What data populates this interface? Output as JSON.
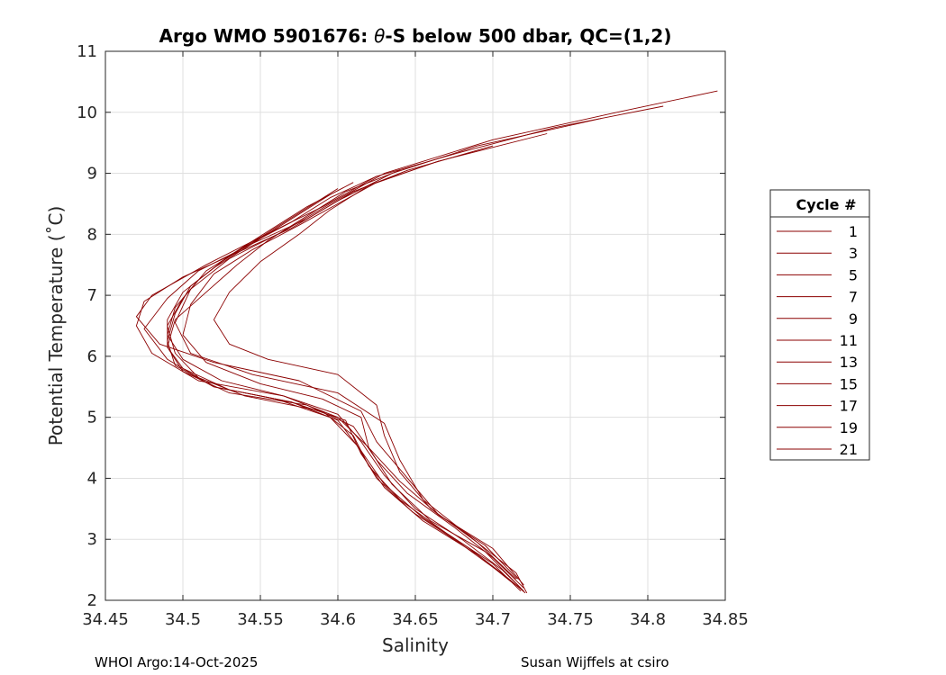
{
  "chart_data": {
    "type": "line",
    "title_prefix": "Argo WMO 5901676: ",
    "title_theta": "θ",
    "title_suffix": "-S below 500 dbar,  QC=(1,2)",
    "xlabel": "Salinity",
    "ylabel": "Potential Temperature (˚C)",
    "xlim": [
      34.45,
      34.85
    ],
    "ylim": [
      2,
      11
    ],
    "xticks": [
      "34.45",
      "34.5",
      "34.55",
      "34.6",
      "34.65",
      "34.7",
      "34.75",
      "34.8",
      "34.85"
    ],
    "yticks": [
      "2",
      "3",
      "4",
      "5",
      "6",
      "7",
      "8",
      "9",
      "10",
      "11"
    ],
    "grid": true,
    "legend_title": "Cycle #",
    "legend_position": "outside-right",
    "line_color": "#8b0000",
    "series": [
      {
        "name": "1",
        "points": [
          [
            34.845,
            10.35
          ],
          [
            34.78,
            10.0
          ],
          [
            34.7,
            9.55
          ],
          [
            34.63,
            9.0
          ],
          [
            34.595,
            8.5
          ],
          [
            34.565,
            8.05
          ],
          [
            34.53,
            7.6
          ],
          [
            34.505,
            7.1
          ],
          [
            34.495,
            6.55
          ],
          [
            34.505,
            6.05
          ],
          [
            34.545,
            5.7
          ],
          [
            34.6,
            5.4
          ],
          [
            34.63,
            4.9
          ],
          [
            34.64,
            4.3
          ],
          [
            34.655,
            3.65
          ],
          [
            34.685,
            3.05
          ],
          [
            34.715,
            2.45
          ],
          [
            34.722,
            2.12
          ]
        ]
      },
      {
        "name": "3",
        "points": [
          [
            34.81,
            10.1
          ],
          [
            34.74,
            9.75
          ],
          [
            34.68,
            9.35
          ],
          [
            34.625,
            8.95
          ],
          [
            34.59,
            8.45
          ],
          [
            34.55,
            7.95
          ],
          [
            34.515,
            7.5
          ],
          [
            34.48,
            7.0
          ],
          [
            34.47,
            6.65
          ],
          [
            34.485,
            6.2
          ],
          [
            34.52,
            5.9
          ],
          [
            34.575,
            5.6
          ],
          [
            34.615,
            5.1
          ],
          [
            34.625,
            4.6
          ],
          [
            34.645,
            4.0
          ],
          [
            34.665,
            3.4
          ],
          [
            34.7,
            2.85
          ],
          [
            34.72,
            2.25
          ]
        ]
      },
      {
        "name": "5",
        "points": [
          [
            34.77,
            9.9
          ],
          [
            34.69,
            9.45
          ],
          [
            34.635,
            9.0
          ],
          [
            34.6,
            8.55
          ],
          [
            34.57,
            8.1
          ],
          [
            34.535,
            7.7
          ],
          [
            34.5,
            7.3
          ],
          [
            34.475,
            6.9
          ],
          [
            34.47,
            6.5
          ],
          [
            34.48,
            6.05
          ],
          [
            34.51,
            5.6
          ],
          [
            34.565,
            5.35
          ],
          [
            34.6,
            5.0
          ],
          [
            34.62,
            4.5
          ],
          [
            34.635,
            3.9
          ],
          [
            34.66,
            3.3
          ],
          [
            34.695,
            2.8
          ],
          [
            34.718,
            2.2
          ]
        ]
      },
      {
        "name": "7",
        "points": [
          [
            34.735,
            9.65
          ],
          [
            34.665,
            9.2
          ],
          [
            34.62,
            8.8
          ],
          [
            34.595,
            8.4
          ],
          [
            34.575,
            8.0
          ],
          [
            34.55,
            7.55
          ],
          [
            34.53,
            7.05
          ],
          [
            34.52,
            6.6
          ],
          [
            34.53,
            6.2
          ],
          [
            34.555,
            5.95
          ],
          [
            34.6,
            5.7
          ],
          [
            34.625,
            5.2
          ],
          [
            34.63,
            4.7
          ],
          [
            34.64,
            4.1
          ],
          [
            34.66,
            3.5
          ],
          [
            34.69,
            2.95
          ],
          [
            34.715,
            2.35
          ]
        ]
      },
      {
        "name": "9",
        "points": [
          [
            34.7,
            9.45
          ],
          [
            34.645,
            9.05
          ],
          [
            34.61,
            8.7
          ],
          [
            34.58,
            8.25
          ],
          [
            34.545,
            7.85
          ],
          [
            34.51,
            7.4
          ],
          [
            34.49,
            6.95
          ],
          [
            34.475,
            6.45
          ],
          [
            34.49,
            5.95
          ],
          [
            34.52,
            5.5
          ],
          [
            34.57,
            5.25
          ],
          [
            34.605,
            4.95
          ],
          [
            34.615,
            4.4
          ],
          [
            34.63,
            3.85
          ],
          [
            34.655,
            3.3
          ],
          [
            34.69,
            2.75
          ],
          [
            34.712,
            2.3
          ]
        ]
      },
      {
        "name": "11",
        "points": [
          [
            34.665,
            9.2
          ],
          [
            34.625,
            8.85
          ],
          [
            34.6,
            8.5
          ],
          [
            34.575,
            8.15
          ],
          [
            34.545,
            7.75
          ],
          [
            34.52,
            7.35
          ],
          [
            34.505,
            6.85
          ],
          [
            34.5,
            6.35
          ],
          [
            34.515,
            5.9
          ],
          [
            34.55,
            5.55
          ],
          [
            34.59,
            5.3
          ],
          [
            34.615,
            5.0
          ],
          [
            34.62,
            4.5
          ],
          [
            34.64,
            3.95
          ],
          [
            34.665,
            3.4
          ],
          [
            34.695,
            2.9
          ],
          [
            34.716,
            2.35
          ]
        ]
      },
      {
        "name": "13",
        "points": [
          [
            34.64,
            9.05
          ],
          [
            34.605,
            8.7
          ],
          [
            34.58,
            8.3
          ],
          [
            34.555,
            7.9
          ],
          [
            34.535,
            7.5
          ],
          [
            34.515,
            7.05
          ],
          [
            34.495,
            6.6
          ],
          [
            34.49,
            6.15
          ],
          [
            34.5,
            5.75
          ],
          [
            34.53,
            5.4
          ],
          [
            34.58,
            5.2
          ],
          [
            34.61,
            4.85
          ],
          [
            34.625,
            4.3
          ],
          [
            34.645,
            3.75
          ],
          [
            34.675,
            3.2
          ],
          [
            34.7,
            2.7
          ],
          [
            34.72,
            2.2
          ]
        ]
      },
      {
        "name": "15",
        "points": [
          [
            34.625,
            8.95
          ],
          [
            34.595,
            8.6
          ],
          [
            34.57,
            8.2
          ],
          [
            34.54,
            7.8
          ],
          [
            34.515,
            7.4
          ],
          [
            34.5,
            6.95
          ],
          [
            34.49,
            6.5
          ],
          [
            34.495,
            6.05
          ],
          [
            34.51,
            5.65
          ],
          [
            34.54,
            5.35
          ],
          [
            34.59,
            5.1
          ],
          [
            34.61,
            4.7
          ],
          [
            34.62,
            4.2
          ],
          [
            34.64,
            3.65
          ],
          [
            34.67,
            3.1
          ],
          [
            34.7,
            2.6
          ],
          [
            34.718,
            2.15
          ]
        ]
      },
      {
        "name": "17",
        "points": [
          [
            34.61,
            8.85
          ],
          [
            34.58,
            8.45
          ],
          [
            34.555,
            8.05
          ],
          [
            34.53,
            7.65
          ],
          [
            34.51,
            7.25
          ],
          [
            34.495,
            6.8
          ],
          [
            34.49,
            6.35
          ],
          [
            34.5,
            5.95
          ],
          [
            34.525,
            5.6
          ],
          [
            34.565,
            5.35
          ],
          [
            34.6,
            5.05
          ],
          [
            34.615,
            4.6
          ],
          [
            34.63,
            4.05
          ],
          [
            34.65,
            3.5
          ],
          [
            34.68,
            3.0
          ],
          [
            34.706,
            2.5
          ],
          [
            34.72,
            2.15
          ]
        ]
      },
      {
        "name": "19",
        "points": [
          [
            34.6,
            8.75
          ],
          [
            34.575,
            8.35
          ],
          [
            34.55,
            7.95
          ],
          [
            34.525,
            7.55
          ],
          [
            34.505,
            7.15
          ],
          [
            34.495,
            6.7
          ],
          [
            34.49,
            6.25
          ],
          [
            34.495,
            5.85
          ],
          [
            34.52,
            5.5
          ],
          [
            34.56,
            5.3
          ],
          [
            34.595,
            5.0
          ],
          [
            34.612,
            4.55
          ],
          [
            34.625,
            4.0
          ],
          [
            34.648,
            3.45
          ],
          [
            34.678,
            2.95
          ],
          [
            34.705,
            2.45
          ],
          [
            34.72,
            2.15
          ]
        ]
      },
      {
        "name": "21",
        "points": [
          [
            34.595,
            8.65
          ],
          [
            34.57,
            8.25
          ],
          [
            34.545,
            7.85
          ],
          [
            34.52,
            7.45
          ],
          [
            34.5,
            7.05
          ],
          [
            34.49,
            6.6
          ],
          [
            34.49,
            6.15
          ],
          [
            34.5,
            5.8
          ],
          [
            34.53,
            5.45
          ],
          [
            34.57,
            5.25
          ],
          [
            34.6,
            4.95
          ],
          [
            34.615,
            4.45
          ],
          [
            34.63,
            3.9
          ],
          [
            34.655,
            3.35
          ],
          [
            34.685,
            2.85
          ],
          [
            34.708,
            2.4
          ],
          [
            34.721,
            2.12
          ]
        ]
      }
    ]
  },
  "footer": {
    "left": "WHOI Argo:14-Oct-2025",
    "right": "Susan Wijffels at csiro"
  }
}
